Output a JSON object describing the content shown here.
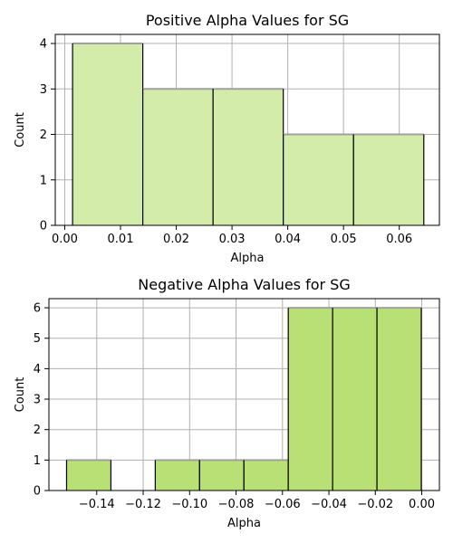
{
  "chart_data": [
    {
      "type": "bar",
      "title": "Positive Alpha Values for SG",
      "xlabel": "Alpha",
      "ylabel": "Count",
      "xlim": [
        -0.0017,
        0.0672
      ],
      "ylim": [
        0,
        4.2
      ],
      "xticks": [
        0.0,
        0.01,
        0.02,
        0.03,
        0.04,
        0.05,
        0.06
      ],
      "xtick_labels": [
        "0.00",
        "0.01",
        "0.02",
        "0.03",
        "0.04",
        "0.05",
        "0.06"
      ],
      "yticks": [
        0,
        1,
        2,
        3,
        4
      ],
      "ytick_labels": [
        "0",
        "1",
        "2",
        "3",
        "4"
      ],
      "grid": true,
      "bar_color": "#d4ecaa",
      "bins": [
        {
          "x0": 0.0014,
          "x1": 0.014,
          "count": 4
        },
        {
          "x0": 0.014,
          "x1": 0.0266,
          "count": 3
        },
        {
          "x0": 0.0266,
          "x1": 0.0392,
          "count": 3
        },
        {
          "x0": 0.0392,
          "x1": 0.0518,
          "count": 2
        },
        {
          "x0": 0.0518,
          "x1": 0.0644,
          "count": 2
        }
      ]
    },
    {
      "type": "bar",
      "title": "Negative Alpha Values for SG",
      "xlabel": "Alpha",
      "ylabel": "Count",
      "xlim": [
        -0.1606,
        0.0076
      ],
      "ylim": [
        0,
        6.3
      ],
      "xticks": [
        -0.14,
        -0.12,
        -0.1,
        -0.08,
        -0.06,
        -0.04,
        -0.02,
        0.0
      ],
      "xtick_labels": [
        "−0.14",
        "−0.12",
        "−0.10",
        "−0.08",
        "−0.06",
        "−0.04",
        "−0.02",
        "0.00"
      ],
      "yticks": [
        0,
        1,
        2,
        3,
        4,
        5,
        6
      ],
      "ytick_labels": [
        "0",
        "1",
        "2",
        "3",
        "4",
        "5",
        "6"
      ],
      "grid": true,
      "bar_color": "#b9e075",
      "bins": [
        {
          "x0": -0.153,
          "x1": -0.1339,
          "count": 1
        },
        {
          "x0": -0.1339,
          "x1": -0.1148,
          "count": 0
        },
        {
          "x0": -0.1148,
          "x1": -0.0957,
          "count": 1
        },
        {
          "x0": -0.0957,
          "x1": -0.0766,
          "count": 1
        },
        {
          "x0": -0.0766,
          "x1": -0.0575,
          "count": 1
        },
        {
          "x0": -0.0575,
          "x1": -0.0384,
          "count": 6
        },
        {
          "x0": -0.0384,
          "x1": -0.0193,
          "count": 6
        },
        {
          "x0": -0.0193,
          "x1": -0.0002,
          "count": 6
        }
      ]
    }
  ]
}
